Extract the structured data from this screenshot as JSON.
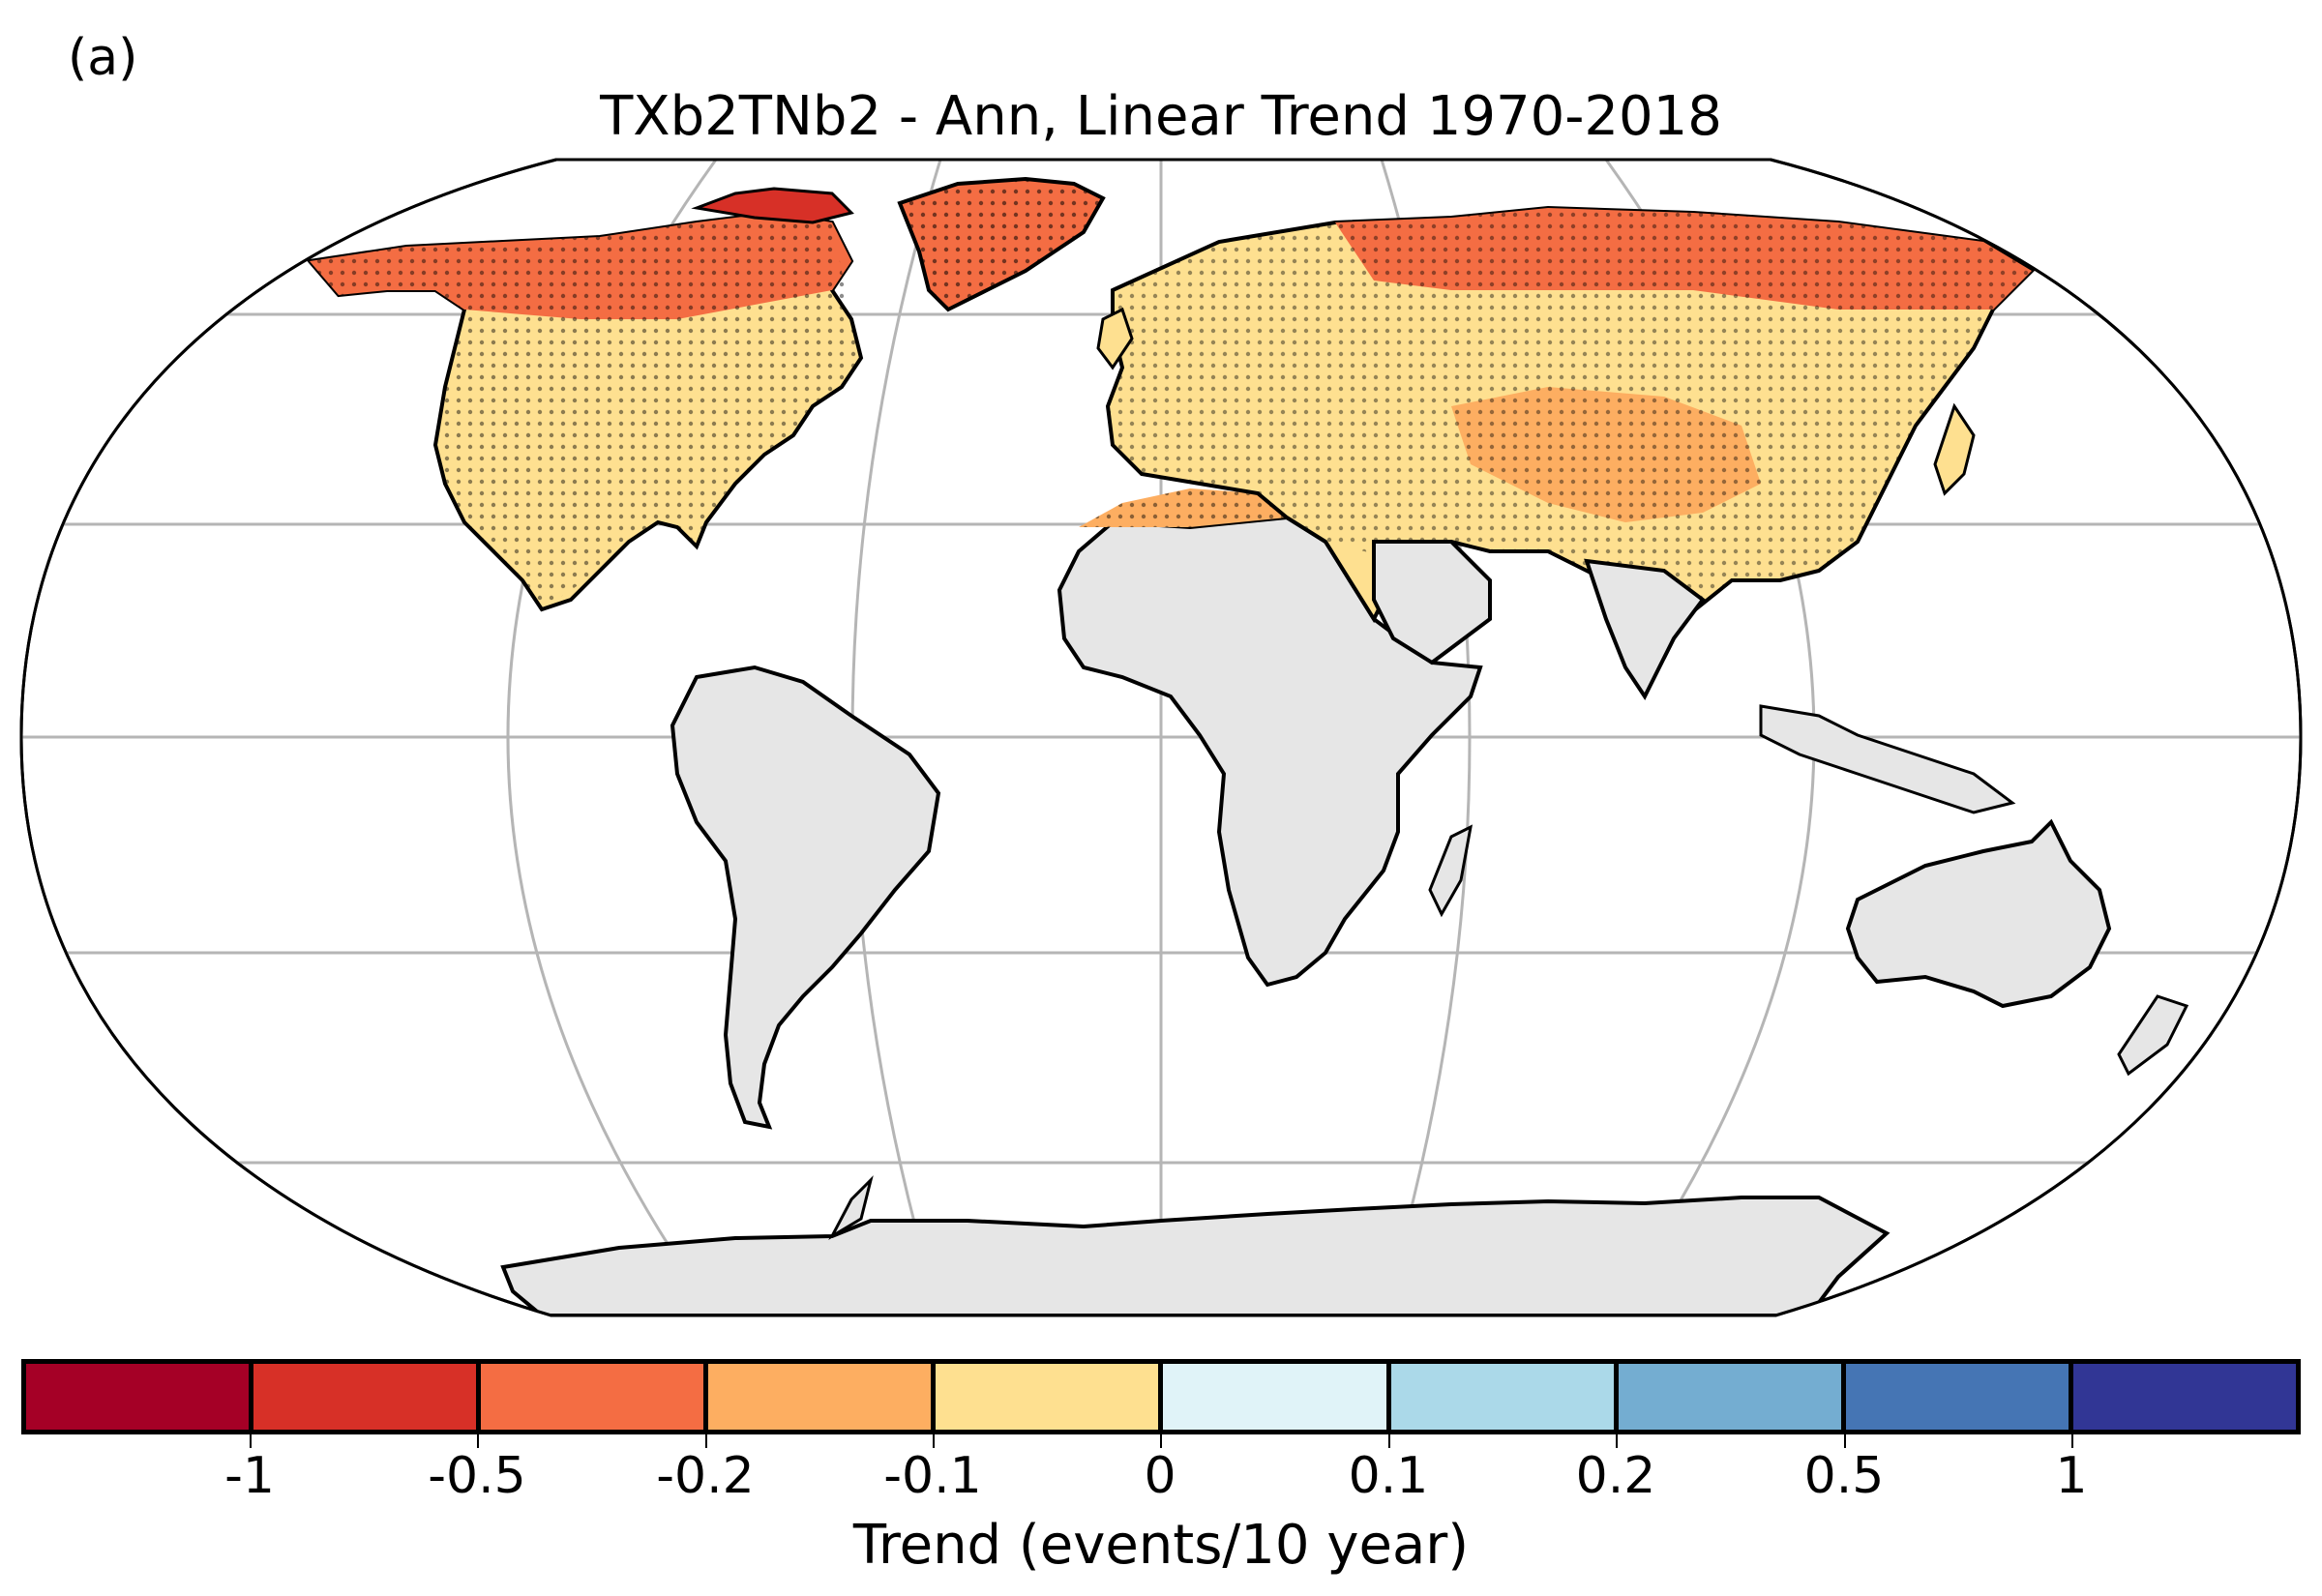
{
  "panel_label": "(a)",
  "title": "TXb2TNb2 - Ann, Linear Trend 1970-2018",
  "colorbar": {
    "label": "Trend (events/10 year)",
    "ticks": [
      "-1",
      "-0.5",
      "-0.2",
      "-0.1",
      "0",
      "0.1",
      "0.2",
      "0.5",
      "1"
    ],
    "bins": [
      {
        "range": "< -1",
        "color": "#a50026"
      },
      {
        "range": "-1 to -0.5",
        "color": "#d73027"
      },
      {
        "range": "-0.5 to -0.2",
        "color": "#f46d43"
      },
      {
        "range": "-0.2 to -0.1",
        "color": "#fdae61"
      },
      {
        "range": "-0.1 to 0",
        "color": "#fee090"
      },
      {
        "range": "0 to 0.1",
        "color": "#e0f3f8"
      },
      {
        "range": "0.1 to 0.2",
        "color": "#abd9e9"
      },
      {
        "range": "0.2 to 0.5",
        "color": "#74add1"
      },
      {
        "range": "0.5 to 1",
        "color": "#4575b4"
      },
      {
        "range": "> 1",
        "color": "#313695"
      }
    ]
  },
  "map": {
    "projection": "Robinson",
    "missing_data_color": "#e6e6e6",
    "stippling": "statistically significant trend",
    "gridlines": true
  }
}
